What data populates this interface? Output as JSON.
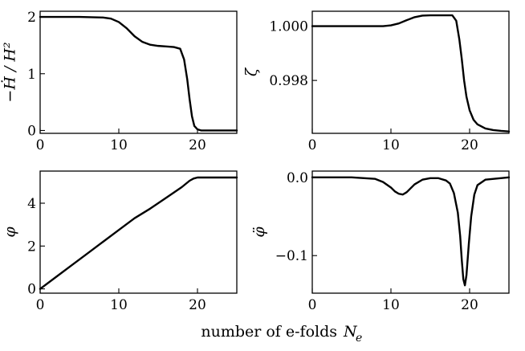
{
  "figure": {
    "xlabel": "number of e-folds",
    "xlabel_symbol": "N",
    "xlabel_subscript": "e"
  },
  "chart_data": [
    {
      "type": "line",
      "ylabel": "−Ḣ / H²",
      "xlim": [
        0,
        25
      ],
      "ylim": [
        -0.05,
        2.1
      ],
      "xticks": [
        0,
        10,
        20
      ],
      "yticks": [
        0,
        1,
        2
      ],
      "ytick_labels": [
        "0",
        "1",
        "2"
      ],
      "grid": false,
      "series": [
        {
          "color": "#000000",
          "x": [
            0,
            5,
            8,
            9,
            10,
            11,
            12,
            13,
            14,
            15,
            16,
            17,
            17.8,
            18.3,
            18.7,
            19.0,
            19.3,
            19.6,
            20.0,
            20.5,
            21,
            22,
            25
          ],
          "y": [
            2.0,
            2.0,
            1.99,
            1.97,
            1.91,
            1.8,
            1.66,
            1.56,
            1.51,
            1.49,
            1.48,
            1.47,
            1.44,
            1.25,
            0.9,
            0.55,
            0.25,
            0.08,
            0.02,
            0.0,
            0.0,
            0.0,
            0.0
          ]
        }
      ]
    },
    {
      "type": "line",
      "ylabel": "ζ",
      "xlim": [
        0,
        25
      ],
      "ylim": [
        0.99605,
        1.00055
      ],
      "xticks": [
        0,
        10,
        20
      ],
      "yticks": [
        0.998,
        1.0
      ],
      "ytick_labels": [
        "0.998",
        "1.000"
      ],
      "grid": false,
      "series": [
        {
          "color": "#000000",
          "x": [
            0,
            5,
            9,
            10,
            11,
            12,
            13,
            14,
            15,
            16,
            17,
            17.8,
            18.3,
            18.7,
            19.0,
            19.3,
            19.6,
            20.0,
            20.5,
            21,
            22,
            23,
            24,
            25
          ],
          "y": [
            1.0,
            1.0,
            1.0,
            1.00003,
            1.0001,
            1.00022,
            1.00033,
            1.00039,
            1.0004,
            1.0004,
            1.0004,
            1.0004,
            1.0002,
            0.9995,
            0.9988,
            0.998,
            0.9974,
            0.9969,
            0.99655,
            0.99638,
            0.99623,
            0.99617,
            0.99614,
            0.99612
          ]
        }
      ]
    },
    {
      "type": "line",
      "ylabel": "φ",
      "xlim": [
        0,
        25
      ],
      "ylim": [
        -0.2,
        5.5
      ],
      "xticks": [
        0,
        10,
        20
      ],
      "yticks": [
        0,
        2,
        4
      ],
      "ytick_labels": [
        "0",
        "2",
        "4"
      ],
      "grid": false,
      "series": [
        {
          "color": "#000000",
          "x": [
            0,
            2,
            4,
            6,
            8,
            10,
            12,
            14,
            16,
            18,
            19,
            19.5,
            20,
            21,
            25
          ],
          "y": [
            0.0,
            0.55,
            1.1,
            1.65,
            2.2,
            2.75,
            3.3,
            3.75,
            4.25,
            4.75,
            5.05,
            5.15,
            5.2,
            5.2,
            5.2
          ]
        }
      ]
    },
    {
      "type": "line",
      "ylabel": "φ̈",
      "xlim": [
        0,
        25
      ],
      "ylim": [
        -0.148,
        0.008
      ],
      "xticks": [
        0,
        10,
        20
      ],
      "yticks": [
        -0.1,
        0.0
      ],
      "ytick_labels": [
        "−0.1",
        "0.0"
      ],
      "grid": false,
      "series": [
        {
          "color": "#000000",
          "x": [
            0,
            5,
            8,
            9,
            10,
            10.5,
            11,
            11.5,
            12,
            12.5,
            13,
            14,
            15,
            16,
            17,
            17.5,
            18,
            18.5,
            18.8,
            19.0,
            19.2,
            19.4,
            19.6,
            19.9,
            20.2,
            20.6,
            21,
            22,
            25
          ],
          "y": [
            0.0,
            0.0,
            -0.002,
            -0.006,
            -0.013,
            -0.018,
            -0.021,
            -0.022,
            -0.019,
            -0.014,
            -0.009,
            -0.003,
            -0.001,
            -0.001,
            -0.004,
            -0.008,
            -0.02,
            -0.045,
            -0.075,
            -0.105,
            -0.13,
            -0.138,
            -0.125,
            -0.085,
            -0.05,
            -0.022,
            -0.01,
            -0.003,
            0.0
          ]
        }
      ]
    }
  ]
}
